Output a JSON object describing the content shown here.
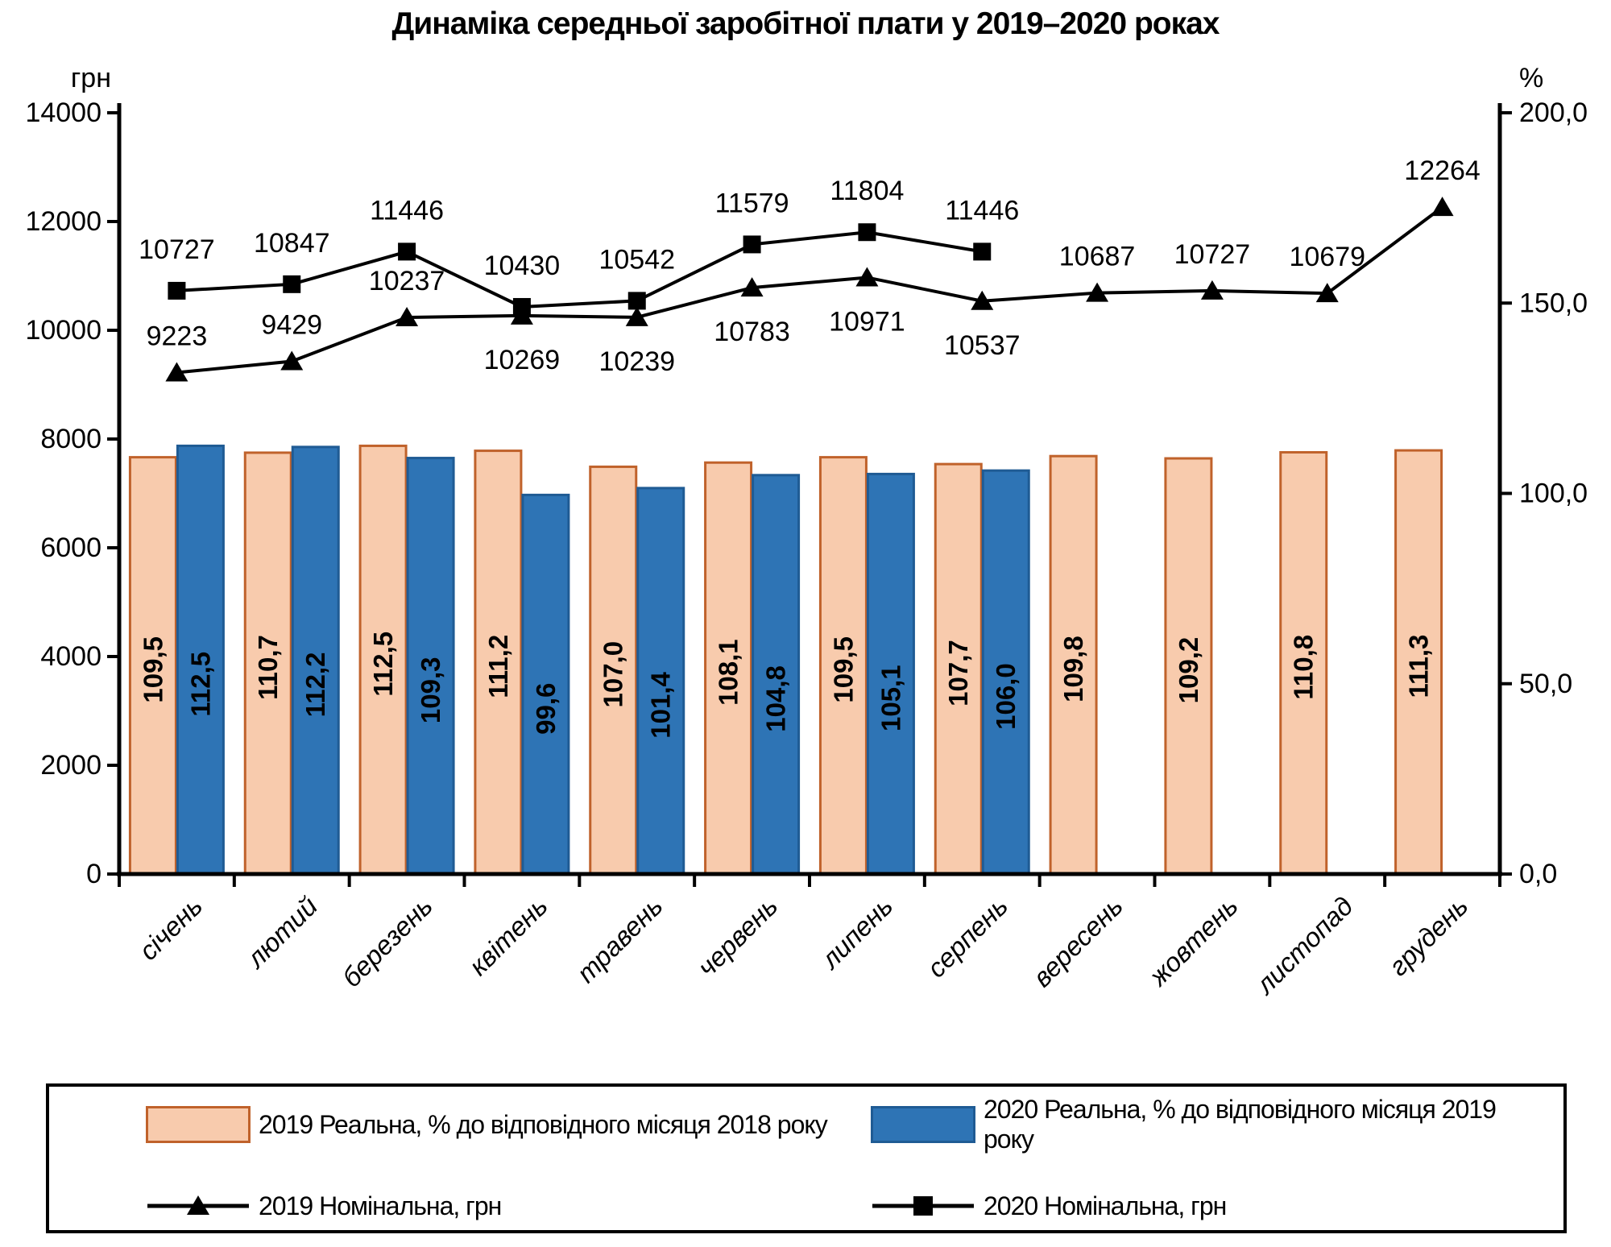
{
  "title": "Динаміка середньої заробітної плати у 2019–2020 роках",
  "left_axis": {
    "unit": "грн",
    "max": 14000,
    "ticks": [
      "14000",
      "12000",
      "10000",
      "8000",
      "6000",
      "4000",
      "2000",
      "0"
    ]
  },
  "right_axis": {
    "unit": "%",
    "max": 200,
    "ticks": [
      "200,0",
      "150,0",
      "100,0",
      "50,0",
      "0,0"
    ]
  },
  "chart_data": {
    "type": "combo-bar-line",
    "title": "Динаміка середньої заробітної плати у 2019–2020 роках",
    "categories": [
      "січень",
      "лютий",
      "березень",
      "квітень",
      "травень",
      "червень",
      "липень",
      "серпень",
      "вересень",
      "жовтень",
      "листопад",
      "грудень"
    ],
    "ylim_left": [
      0,
      14000
    ],
    "ylim_right": [
      0,
      200
    ],
    "grid": false,
    "legend_position": "bottom",
    "series": [
      {
        "name": "2019 Реальна, % до відповідного місяця 2018 року",
        "type": "bar",
        "axis": "right",
        "labels": [
          "109,5",
          "110,7",
          "112,5",
          "111,2",
          "107,0",
          "108,1",
          "109,5",
          "107,7",
          "109,8",
          "109,2",
          "110,8",
          "111,3"
        ],
        "fill": "#F8CBAD",
        "border": "#C0622B"
      },
      {
        "name": "2020 Реальна, % до відповідного місяця 2019 року",
        "type": "bar",
        "axis": "right",
        "labels": [
          "112,5",
          "112,2",
          "109,3",
          "99,6",
          "101,4",
          "104,8",
          "105,1",
          "106,0",
          null,
          null,
          null,
          null
        ],
        "fill": "#2E74B5",
        "border": "#1F5B94"
      },
      {
        "name": "2019 Номінальна, грн",
        "type": "line",
        "axis": "left",
        "marker": "triangle",
        "color": "#000000",
        "values": [
          9223,
          9429,
          10237,
          10269,
          10239,
          10783,
          10971,
          10537,
          10687,
          10727,
          10679,
          12264
        ],
        "label_pos": [
          "above",
          "above",
          "above",
          "below",
          "below",
          "below",
          "below",
          "below",
          "above",
          "above",
          "above",
          "above"
        ]
      },
      {
        "name": "2020 Номінальна, грн",
        "type": "line",
        "axis": "left",
        "marker": "square",
        "color": "#000000",
        "values": [
          10727,
          10847,
          11446,
          10430,
          10542,
          11579,
          11804,
          11446,
          null,
          null,
          null,
          null
        ],
        "label_pos": [
          "above",
          "above",
          "above",
          "above",
          "above",
          "above",
          "above",
          "above",
          null,
          null,
          null,
          null
        ]
      }
    ]
  }
}
